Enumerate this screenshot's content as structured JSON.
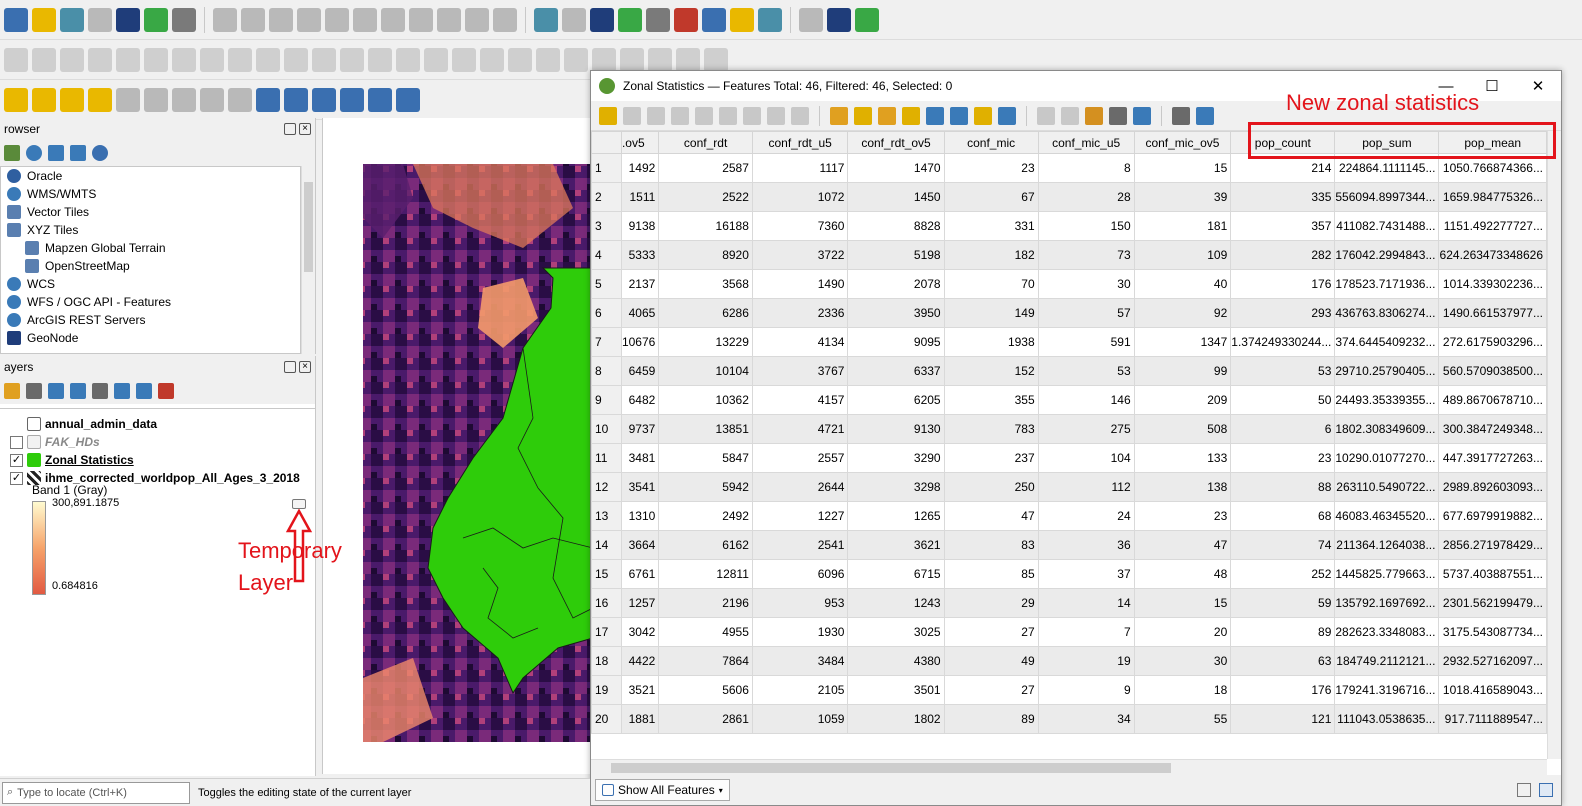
{
  "toolbar": {
    "row1_icons": [
      "new-project-icon",
      "open-project-icon",
      "digitize-icon",
      "edit-pencil-icon",
      "save-icon",
      "layer-grid-icon",
      "vector-layer-icon",
      "toggle-editing-icon",
      "pencil-icon",
      "save-edits-icon",
      "vertex-tool-icon",
      "move-feature-icon",
      "delete-feature-icon",
      "cut-icon",
      "copy-icon",
      "paste-icon",
      "undo-icon",
      "redo-icon",
      "label-abc-icon",
      "diagram-icon",
      "label-highlight-icon",
      "label-red-icon",
      "pin-label-icon",
      "show-label-icon",
      "move-label-icon",
      "rotate-label-icon",
      "change-label-icon",
      "plugin-manager-icon",
      "python-icon",
      "help-icon"
    ],
    "row3_icons": [
      "select-features-icon",
      "select-value-icon",
      "deselect-icon",
      "identify-icon",
      "advanced-digitize-icon",
      "reshape-icon",
      "offset-icon",
      "split-icon",
      "label-tool-icon",
      "select-box-icon",
      "node-tool-icon",
      "vertex-editor-icon",
      "star-icon",
      "text-annotation-icon",
      "annotation-icon"
    ]
  },
  "browser_panel": {
    "title": "rowser",
    "items": [
      {
        "icon": "database-icon",
        "label": "Oracle",
        "sub": false
      },
      {
        "icon": "globe-icon",
        "label": "WMS/WMTS",
        "sub": false
      },
      {
        "icon": "grid-icon",
        "label": "Vector Tiles",
        "sub": false
      },
      {
        "icon": "grid-icon",
        "label": "XYZ Tiles",
        "sub": false
      },
      {
        "icon": "grid-icon",
        "label": "Mapzen Global Terrain",
        "sub": true
      },
      {
        "icon": "grid-icon",
        "label": "OpenStreetMap",
        "sub": true
      },
      {
        "icon": "globe-icon",
        "label": "WCS",
        "sub": false
      },
      {
        "icon": "globe-icon",
        "label": "WFS / OGC API - Features",
        "sub": false
      },
      {
        "icon": "globe-icon",
        "label": "ArcGIS REST Servers",
        "sub": false
      },
      {
        "icon": "node-icon",
        "label": "GeoNode",
        "sub": false
      }
    ]
  },
  "layers_panel": {
    "title": "ayers",
    "layers": [
      {
        "name": "annual_admin_data",
        "checked": null,
        "bold": true,
        "italic": false,
        "icon": "table-icon",
        "indent": 14
      },
      {
        "name": "FAK_HDs",
        "checked": false,
        "bold": true,
        "italic": true,
        "icon": "folder-icon",
        "indent": 0
      },
      {
        "name": "Zonal Statistics",
        "checked": true,
        "bold": true,
        "italic": false,
        "icon": "polygon-fill-icon",
        "indent": 0,
        "underline": true
      },
      {
        "name": "ihme_corrected_worldpop_All_Ages_3_2018",
        "checked": true,
        "bold": true,
        "italic": false,
        "icon": "raster-icon",
        "indent": 0
      }
    ],
    "band_label": "Band 1 (Gray)",
    "legend_max": "300,891.1875",
    "legend_min": "0.684816"
  },
  "annotations": {
    "temporary_layer_line1": "Temporary",
    "temporary_layer_line2": "Layer",
    "new_zonal_statistics": "New zonal statistics"
  },
  "attribute_table": {
    "title": "Zonal Statistics — Features Total: 46, Filtered: 46, Selected: 0",
    "columns": [
      ".ov5",
      "conf_rdt",
      "conf_rdt_u5",
      "conf_rdt_ov5",
      "conf_mic",
      "conf_mic_u5",
      "conf_mic_ov5",
      "pop_count",
      "pop_sum",
      "pop_mean"
    ],
    "rows": [
      [
        "1",
        "1492",
        "2587",
        "1117",
        "1470",
        "23",
        "8",
        "15",
        "214",
        "224864.1111145...",
        "1050.766874366..."
      ],
      [
        "2",
        "1511",
        "2522",
        "1072",
        "1450",
        "67",
        "28",
        "39",
        "335",
        "556094.8997344...",
        "1659.984775326..."
      ],
      [
        "3",
        "9138",
        "16188",
        "7360",
        "8828",
        "331",
        "150",
        "181",
        "357",
        "411082.7431488...",
        "1151.492277727..."
      ],
      [
        "4",
        "5333",
        "8920",
        "3722",
        "5198",
        "182",
        "73",
        "109",
        "282",
        "176042.2994843...",
        "624.263473348626"
      ],
      [
        "5",
        "2137",
        "3568",
        "1490",
        "2078",
        "70",
        "30",
        "40",
        "176",
        "178523.7171936...",
        "1014.339302236..."
      ],
      [
        "6",
        "4065",
        "6286",
        "2336",
        "3950",
        "149",
        "57",
        "92",
        "293",
        "436763.8306274...",
        "1490.661537977..."
      ],
      [
        "7",
        "10676",
        "13229",
        "4134",
        "9095",
        "1938",
        "591",
        "1347",
        "1.374249330244...",
        "374.6445409232...",
        "272.6175903296..."
      ],
      [
        "8",
        "6459",
        "10104",
        "3767",
        "6337",
        "152",
        "53",
        "99",
        "53",
        "29710.25790405...",
        "560.5709038500..."
      ],
      [
        "9",
        "6482",
        "10362",
        "4157",
        "6205",
        "355",
        "146",
        "209",
        "50",
        "24493.35339355...",
        "489.8670678710..."
      ],
      [
        "10",
        "9737",
        "13851",
        "4721",
        "9130",
        "783",
        "275",
        "508",
        "6",
        "1802.308349609...",
        "300.3847249348..."
      ],
      [
        "11",
        "3481",
        "5847",
        "2557",
        "3290",
        "237",
        "104",
        "133",
        "23",
        "10290.01077270...",
        "447.3917727263..."
      ],
      [
        "12",
        "3541",
        "5942",
        "2644",
        "3298",
        "250",
        "112",
        "138",
        "88",
        "263110.5490722...",
        "2989.892603093..."
      ],
      [
        "13",
        "1310",
        "2492",
        "1227",
        "1265",
        "47",
        "24",
        "23",
        "68",
        "46083.46345520...",
        "677.6979919882..."
      ],
      [
        "14",
        "3664",
        "6162",
        "2541",
        "3621",
        "83",
        "36",
        "47",
        "74",
        "211364.1264038...",
        "2856.271978429..."
      ],
      [
        "15",
        "6761",
        "12811",
        "6096",
        "6715",
        "85",
        "37",
        "48",
        "252",
        "1445825.779663...",
        "5737.403887551..."
      ],
      [
        "16",
        "1257",
        "2196",
        "953",
        "1243",
        "29",
        "14",
        "15",
        "59",
        "135792.1697692...",
        "2301.562199479..."
      ],
      [
        "17",
        "3042",
        "4955",
        "1930",
        "3025",
        "27",
        "7",
        "20",
        "89",
        "282623.3348083...",
        "3175.543087734..."
      ],
      [
        "18",
        "4422",
        "7864",
        "3484",
        "4380",
        "49",
        "19",
        "30",
        "63",
        "184749.2112121...",
        "2932.527162097..."
      ],
      [
        "19",
        "3521",
        "5606",
        "2105",
        "3501",
        "27",
        "9",
        "18",
        "176",
        "179241.3196716...",
        "1018.416589043..."
      ],
      [
        "20",
        "1881",
        "2861",
        "1059",
        "1802",
        "89",
        "34",
        "55",
        "121",
        "111043.0538635...",
        "917.7111889547..."
      ]
    ],
    "show_all_label": "Show All Features"
  },
  "status_bar": {
    "locator_placeholder": "Type to locate (Ctrl+K)",
    "message": "Toggles the editing state of the current layer"
  },
  "colors": {
    "annotation_red": "#e3141b",
    "zonal_green": "#2ecc0a",
    "qgis_green": "#589632"
  }
}
